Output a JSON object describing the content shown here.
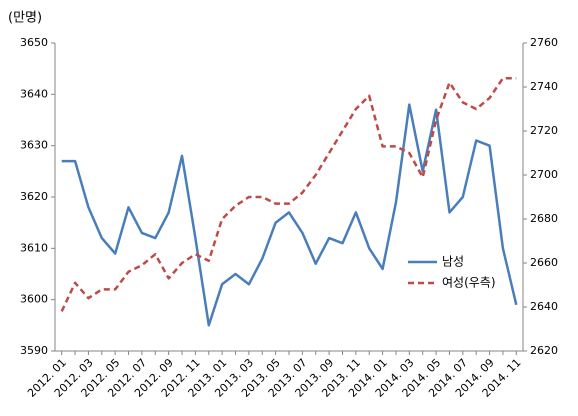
{
  "chart_data": {
    "type": "line",
    "unit_label": "(만명)",
    "categories": [
      "2012. 01",
      null,
      "2012. 03",
      null,
      "2012. 05",
      null,
      "2012. 07",
      null,
      "2012. 09",
      null,
      "2012. 11",
      null,
      "2013. 01",
      null,
      "2013. 03",
      null,
      "2013. 05",
      null,
      "2013. 07",
      null,
      "2013. 09",
      null,
      "2013. 11",
      null,
      "2014. 01",
      null,
      "2014. 03",
      null,
      "2014. 05",
      null,
      "2014. 07",
      null,
      "2014. 09",
      null,
      "2014. 11"
    ],
    "series": [
      {
        "name": "남성",
        "color": "#4a7ebb",
        "dash": false,
        "axis": "y",
        "values": [
          3627,
          3627,
          3618,
          3612,
          3609,
          3618,
          3613,
          3612,
          3617,
          3628,
          3612,
          3595,
          3603,
          3605,
          3603,
          3608,
          3615,
          3617,
          3613,
          3607,
          3612,
          3611,
          3617,
          3610,
          3606,
          3619,
          3638,
          3625,
          3637,
          3617,
          3620,
          3631,
          3630,
          3610,
          3599
        ]
      },
      {
        "name": "여성(우측)",
        "color": "#be4b48",
        "dash": true,
        "axis": "y2",
        "values": [
          2638,
          2651,
          2644,
          2648,
          2648,
          2656,
          2659,
          2664,
          2653,
          2660,
          2664,
          2661,
          2680,
          2686,
          2690,
          2690,
          2687,
          2687,
          2692,
          2700,
          2710,
          2720,
          2730,
          2736,
          2713,
          2713,
          2710,
          2699,
          2725,
          2742,
          2733,
          2730,
          2735,
          2744,
          2744
        ]
      }
    ],
    "ylim": [
      3590,
      3650
    ],
    "yticks": [
      3590,
      3600,
      3610,
      3620,
      3630,
      3640,
      3650
    ],
    "y2lim": [
      2620,
      2760
    ],
    "y2ticks": [
      2620,
      2640,
      2660,
      2680,
      2700,
      2720,
      2740,
      2760
    ],
    "grid": false
  }
}
